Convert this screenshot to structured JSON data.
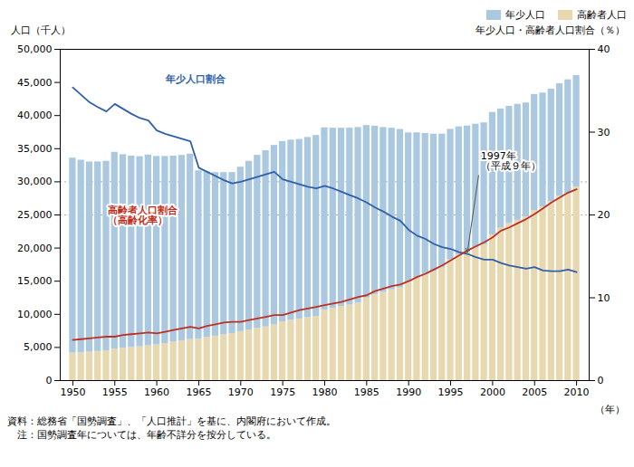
{
  "chart_data": {
    "type": "bar",
    "stacked": true,
    "legend": "top-right",
    "x": [
      1950,
      1951,
      1952,
      1953,
      1954,
      1955,
      1956,
      1957,
      1958,
      1959,
      1960,
      1961,
      1962,
      1963,
      1964,
      1965,
      1966,
      1967,
      1968,
      1969,
      1970,
      1971,
      1972,
      1973,
      1974,
      1975,
      1976,
      1977,
      1978,
      1979,
      1980,
      1981,
      1982,
      1983,
      1984,
      1985,
      1986,
      1987,
      1988,
      1989,
      1990,
      1991,
      1992,
      1993,
      1994,
      1995,
      1996,
      1997,
      1998,
      1999,
      2000,
      2001,
      2002,
      2003,
      2004,
      2005,
      2006,
      2007,
      2008,
      2009,
      2010
    ],
    "xlabel": "（年）",
    "ylabel": "人口（千人）",
    "y2label": "年少人口・高齢者人口割合（％）",
    "xlim": [
      1948.5,
      2011.5
    ],
    "xticks": [
      1950,
      1955,
      1960,
      1965,
      1970,
      1975,
      1980,
      1985,
      1990,
      1995,
      2000,
      2005,
      2010
    ],
    "ylim": [
      0,
      50000
    ],
    "yticks": [
      0,
      {
        "value": 5000,
        "label": "5,000"
      },
      {
        "value": 10000,
        "label": "10,000"
      },
      {
        "value": 15000,
        "label": "15,000"
      },
      {
        "value": 20000,
        "label": "20,000"
      },
      {
        "value": 25000,
        "label": "25,000"
      },
      {
        "value": 30000,
        "label": "30,000"
      },
      {
        "value": 35000,
        "label": "35,000"
      },
      {
        "value": 40000,
        "label": "40,000"
      },
      {
        "value": 45000,
        "label": "45,000"
      },
      {
        "value": 50000,
        "label": "50,000"
      }
    ],
    "y2lim": [
      0,
      40
    ],
    "y2ticks": [
      0,
      10,
      20,
      30,
      40
    ],
    "hlines": [
      30000,
      25000
    ],
    "series": [
      {
        "name": "高齢者人口",
        "type": "bar",
        "color": "#e8d8b0",
        "values": [
          4155,
          4200,
          4300,
          4400,
          4500,
          4760,
          4900,
          5000,
          5100,
          5250,
          5398,
          5600,
          5800,
          6000,
          6200,
          6236,
          6500,
          6700,
          6900,
          7100,
          7393,
          7600,
          7900,
          8100,
          8400,
          8865,
          9100,
          9300,
          9500,
          9700,
          10647,
          10900,
          11200,
          11400,
          11700,
          12468,
          13000,
          13300,
          13700,
          14000,
          14895,
          15500,
          16000,
          16500,
          17000,
          18261,
          19000,
          19430,
          20000,
          20500,
          22005,
          23000,
          23700,
          24200,
          24700,
          25672,
          26200,
          27000,
          27800,
          28200,
          29246
        ]
      },
      {
        "name": "年少人口",
        "type": "bar",
        "color": "#aac8e0",
        "values": [
          29430,
          29070,
          28700,
          28610,
          28600,
          29700,
          29200,
          28900,
          28700,
          28800,
          28434,
          28230,
          28080,
          27990,
          27980,
          25430,
          25000,
          24700,
          24500,
          24300,
          24823,
          25500,
          26100,
          26600,
          27100,
          27221,
          27200,
          27100,
          27200,
          27300,
          27507,
          27200,
          26900,
          26700,
          26500,
          26033,
          25400,
          24900,
          24400,
          23900,
          22486,
          21900,
          21300,
          20700,
          20200,
          19660,
          19300,
          19000,
          18700,
          18400,
          18472,
          18000,
          17700,
          17500,
          17200,
          17521,
          17200,
          17000,
          17000,
          17200,
          16803
        ]
      },
      {
        "name": "年少人口割合",
        "type": "line",
        "axis": "y2",
        "color": "#3060a8",
        "values": [
          35.4,
          34.5,
          33.6,
          33.0,
          32.5,
          33.4,
          32.8,
          32.2,
          31.7,
          31.4,
          30.2,
          29.8,
          29.5,
          29.2,
          28.9,
          25.7,
          25.2,
          24.7,
          24.2,
          23.8,
          24.0,
          24.3,
          24.6,
          24.9,
          25.2,
          24.3,
          24.0,
          23.7,
          23.4,
          23.2,
          23.5,
          23.2,
          22.8,
          22.4,
          22.0,
          21.5,
          20.9,
          20.4,
          19.8,
          19.3,
          18.2,
          17.5,
          17.1,
          16.5,
          16.1,
          15.9,
          15.5,
          15.3,
          14.9,
          14.6,
          14.6,
          14.2,
          13.9,
          13.7,
          13.5,
          13.7,
          13.3,
          13.2,
          13.2,
          13.4,
          13.1
        ]
      },
      {
        "name": "高齢者人口割合\n（高齢化率）",
        "type": "line",
        "axis": "y2",
        "color": "#c03020",
        "values": [
          4.9,
          5.0,
          5.1,
          5.2,
          5.3,
          5.3,
          5.5,
          5.6,
          5.7,
          5.8,
          5.7,
          5.9,
          6.1,
          6.3,
          6.5,
          6.3,
          6.6,
          6.8,
          7.0,
          7.1,
          7.1,
          7.3,
          7.5,
          7.7,
          7.9,
          7.9,
          8.2,
          8.5,
          8.7,
          8.9,
          9.1,
          9.3,
          9.5,
          9.8,
          10.1,
          10.3,
          10.8,
          11.1,
          11.4,
          11.6,
          12.0,
          12.5,
          12.9,
          13.4,
          13.9,
          14.5,
          15.1,
          15.7,
          16.2,
          16.7,
          17.3,
          18.1,
          18.5,
          19.0,
          19.5,
          20.1,
          20.8,
          21.5,
          22.1,
          22.7,
          23.1
        ]
      }
    ],
    "annotations": [
      {
        "text": "1997年\n（平成９年）",
        "x": 1997,
        "y": 15.5,
        "axis": "y2"
      }
    ],
    "notes": [
      "資料：総務省「国勢調査」、「人口推計」を基に、内閣府において作成。",
      "　注：国勢調査年については、年齢不詳分を按分している。"
    ]
  }
}
